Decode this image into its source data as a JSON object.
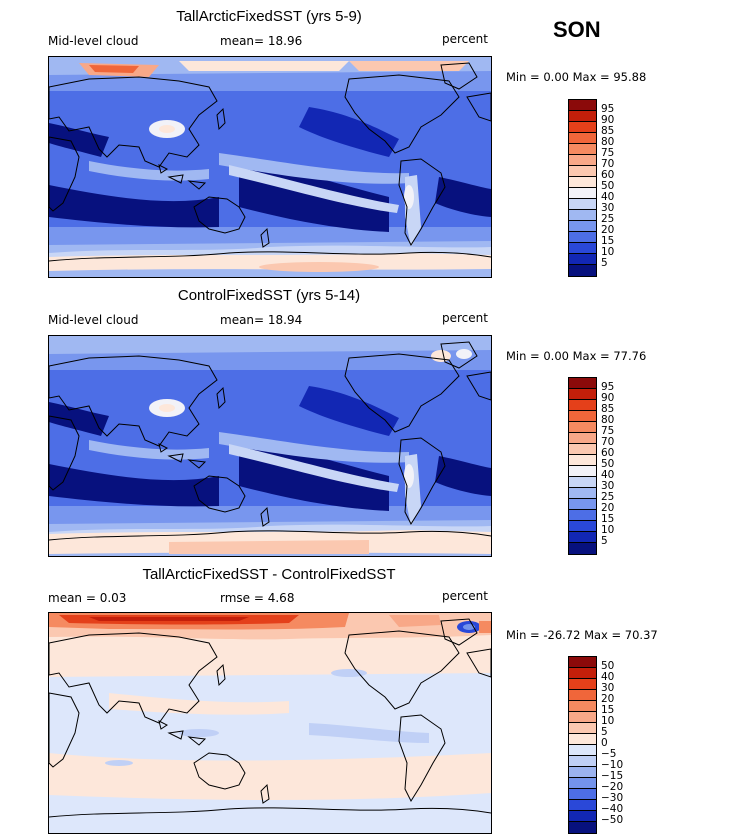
{
  "season": "SON",
  "panels": [
    {
      "title": "TallArcticFixedSST (yrs 5-9)",
      "left_label": "Mid-level cloud",
      "mid_label": "mean=  18.96",
      "right_label": "percent",
      "minmax": "Min =    0.00 Max =   95.88",
      "palette": "abs",
      "kind": "abs"
    },
    {
      "title": "ControlFixedSST (yrs 5-14)",
      "left_label": "Mid-level cloud",
      "mid_label": "mean=  18.94",
      "right_label": "percent",
      "minmax": "Min =    0.00 Max =   77.76",
      "palette": "abs",
      "kind": "abs"
    },
    {
      "title": "TallArcticFixedSST - ControlFixedSST",
      "left_label": "mean =    0.03",
      "mid_label": "rmse =    4.68",
      "right_label": "percent",
      "minmax": "Min = -26.72 Max =   70.37",
      "palette": "diff",
      "kind": "diff"
    }
  ],
  "colorbars": {
    "abs": {
      "labels": [
        "95",
        "90",
        "85",
        "80",
        "75",
        "70",
        "60",
        "50",
        "40",
        "30",
        "25",
        "20",
        "15",
        "10",
        "5"
      ],
      "colors": [
        "#8b0a0a",
        "#c41f0a",
        "#e4401a",
        "#f0663a",
        "#f58a60",
        "#f8a888",
        "#fbc8b0",
        "#fde7da",
        "#f2f2f8",
        "#c8d6f6",
        "#a0b8f2",
        "#7896ee",
        "#4d6ee6",
        "#2a48d8",
        "#1227b4",
        "#07117e"
      ]
    },
    "diff": {
      "labels": [
        "50",
        "40",
        "30",
        "20",
        "15",
        "10",
        "5",
        "0",
        "−5",
        "−10",
        "−15",
        "−20",
        "−30",
        "−40",
        "−50"
      ],
      "colors": [
        "#8b0a0a",
        "#c41f0a",
        "#e4401a",
        "#f0663a",
        "#f58a60",
        "#f8a888",
        "#fbc8b0",
        "#fde7da",
        "#dde7fb",
        "#c0d0f6",
        "#9bb3f0",
        "#7494ec",
        "#4d6ee6",
        "#2a48d8",
        "#1227b4",
        "#07117e"
      ]
    }
  }
}
